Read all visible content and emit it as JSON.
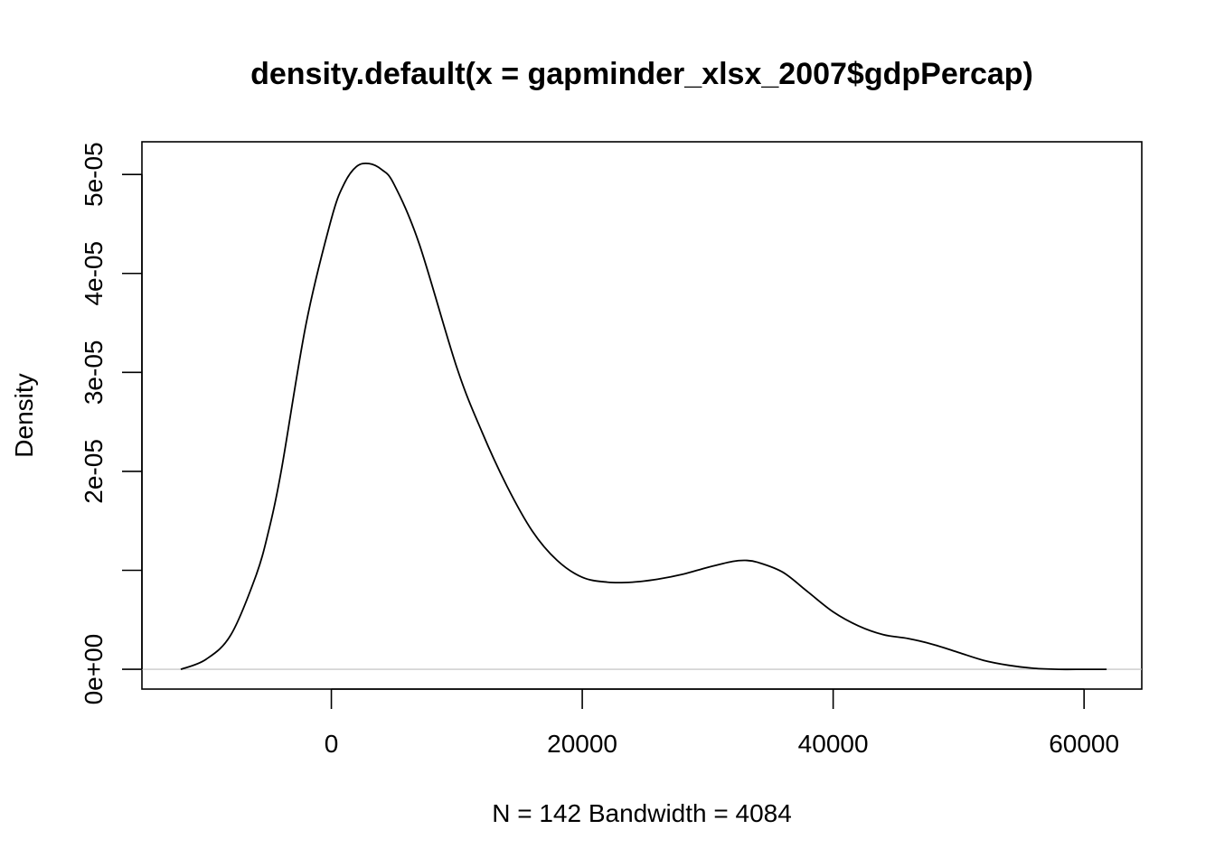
{
  "chart_data": {
    "type": "line",
    "title": "density.default(x = gapminder_xlsx_2007$gdpPercap)",
    "xlabel": "N = 142   Bandwidth = 4084",
    "ylabel": "Density",
    "xlim": [
      -15100,
      64600
    ],
    "ylim": [
      -2e-06,
      5.33e-05
    ],
    "x_ticks": [
      0,
      20000,
      40000,
      60000
    ],
    "x_tick_labels": [
      "0",
      "20000",
      "40000",
      "60000"
    ],
    "y_ticks": [
      0,
      1e-05,
      2e-05,
      3e-05,
      4e-05,
      5e-05
    ],
    "y_tick_labels": [
      "0e+00",
      "",
      "2e-05",
      "3e-05",
      "4e-05",
      "5e-05"
    ],
    "baseline": 0,
    "grid": false,
    "colors": {
      "line": "#000000",
      "axis": "#000000",
      "baseline": "#bebebe"
    },
    "series": [
      {
        "x": [
          -12000,
          -10000,
          -8000,
          -6000,
          -5000,
          -4000,
          -2000,
          0,
          1000,
          2000,
          3000,
          4000,
          5000,
          7000,
          10000,
          12000,
          14000,
          16000,
          18000,
          20000,
          22000,
          24000,
          26000,
          28000,
          30000,
          32000,
          33000,
          34000,
          36000,
          38000,
          40000,
          42000,
          44000,
          46000,
          48000,
          50000,
          52000,
          54000,
          56000,
          58000,
          60000,
          61800
        ],
        "y": [
          0.0,
          1e-06,
          3.5e-06,
          9.5e-06,
          1.4e-05,
          2e-05,
          3.5e-05,
          4.55e-05,
          4.9e-05,
          5.08e-05,
          5.11e-05,
          5.05e-05,
          4.9e-05,
          4.3e-05,
          3.05e-05,
          2.4e-05,
          1.85e-05,
          1.4e-05,
          1.1e-05,
          9.3e-06,
          8.8e-06,
          8.8e-06,
          9.1e-06,
          9.6e-06,
          1.03e-05,
          1.09e-05,
          1.1e-05,
          1.08e-05,
          9.8e-06,
          7.8e-06,
          5.8e-06,
          4.4e-06,
          3.5e-06,
          3.1e-06,
          2.5e-06,
          1.7e-06,
          9e-07,
          4e-07,
          1e-07,
          0.0,
          0.0,
          0.0
        ]
      }
    ]
  }
}
